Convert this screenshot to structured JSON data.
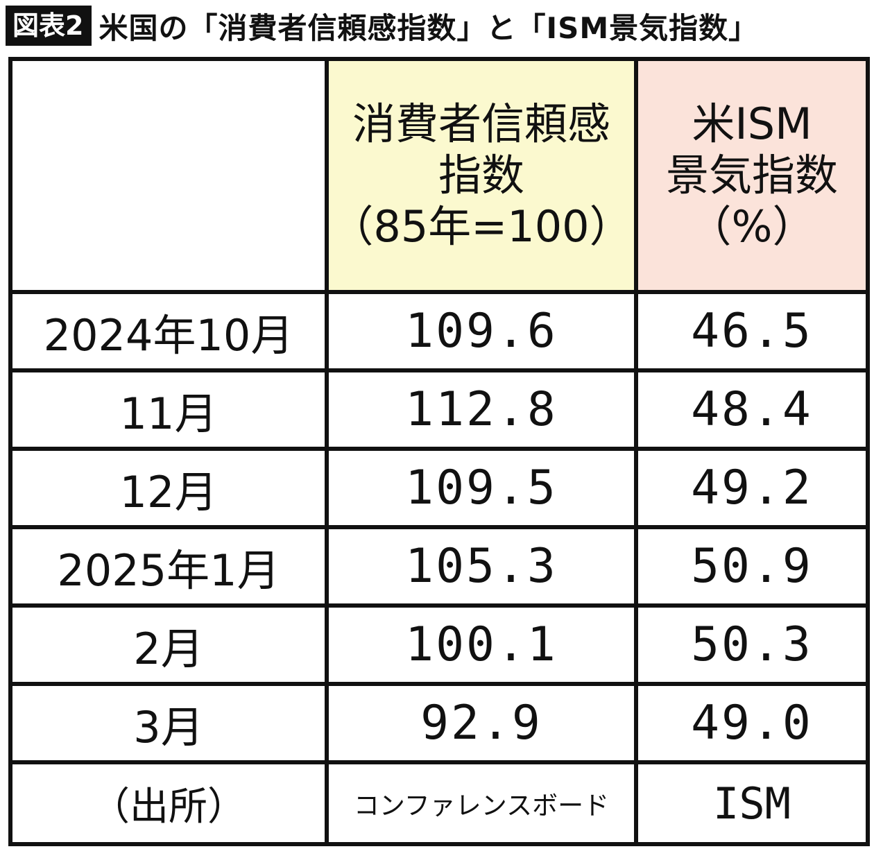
{
  "figure": {
    "badge": "図表2",
    "title": "米国の「消費者信頼感指数」と「ISM景気指数」"
  },
  "table": {
    "headers": {
      "blank": "",
      "confidence": {
        "line1": "消費者信頼感",
        "line2": "指数",
        "line3": "（85年=100）"
      },
      "ism": {
        "line1": "米ISM",
        "line2": "景気指数",
        "line3": "（%）"
      }
    },
    "rows": [
      {
        "period": "2024年10月",
        "confidence": "109.6",
        "ism": "46.5"
      },
      {
        "period": "11月",
        "confidence": "112.8",
        "ism": "48.4"
      },
      {
        "period": "12月",
        "confidence": "109.5",
        "ism": "49.2"
      },
      {
        "period": "2025年1月",
        "confidence": "105.3",
        "ism": "50.9"
      },
      {
        "period": "2月",
        "confidence": "100.1",
        "ism": "50.3"
      },
      {
        "period": "3月",
        "confidence": "92.9",
        "ism": "49.0"
      }
    ],
    "source": {
      "label": "（出所）",
      "confidence": "コンファレンスボード",
      "ism": "ISM"
    }
  },
  "colors": {
    "confidence_header_bg": "#fbf9cf",
    "ism_header_bg": "#fbe3da",
    "border": "#111111",
    "badge_bg": "#111111"
  }
}
